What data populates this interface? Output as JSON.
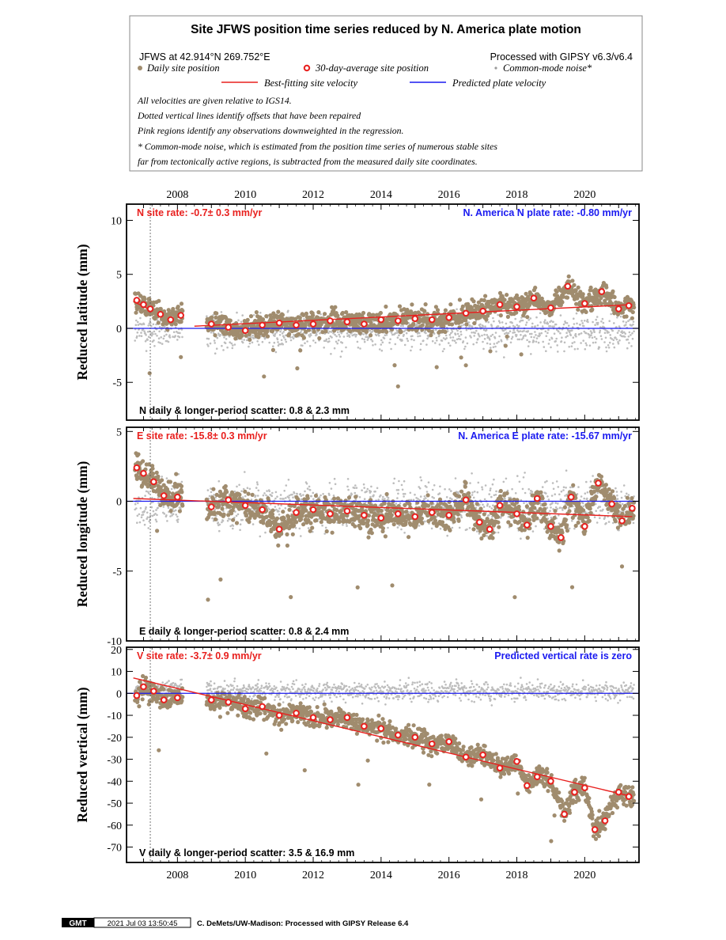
{
  "legend": {
    "title": "Site JFWS position time series reduced by N. America plate motion",
    "site_info": "JFWS at 42.914°N 269.752°E",
    "processed": "Processed with GIPSY v6.3/v6.4",
    "daily_label": "Daily site position",
    "avg_label": "30-day-average site position",
    "cm_label": "Common-mode noise*",
    "fit_label": "Best-fitting site velocity",
    "plate_label": "Predicted plate velocity",
    "note1": "All velocities are given relative to IGS14.",
    "note2": "Dotted vertical lines identify offsets that have been repaired",
    "note3": "Pink regions identify any observations downweighted in the regression.",
    "note4": "* Common-mode noise, which is estimated from the position time series of numerous stable sites",
    "note5": "far from tectonically active regions, is subtracted from the measured daily site coordinates."
  },
  "footer": {
    "logo": "GMT",
    "timestamp": "2021 Jul 03 13:50:45",
    "credit": "C. DeMets/UW-Madison: Processed with GIPSY Release 6.4"
  },
  "colors": {
    "daily": "#a08c6e",
    "common_mode": "#bdbdbd",
    "average_fill": "#ffffff",
    "average_edge": "#e8201e",
    "fit": "#e8201e",
    "plate": "#1a1af0",
    "site_text": "#e8201e",
    "plate_text": "#1a1af0"
  },
  "chart_data": [
    {
      "type": "scatter",
      "panel": "north",
      "ylabel": "Reduced latitude (mm)",
      "xlim": [
        2006.5,
        2021.6
      ],
      "ylim": [
        -8.5,
        11.5
      ],
      "x_ticks": [
        2008,
        2010,
        2012,
        2014,
        2016,
        2018,
        2020
      ],
      "y_ticks": [
        10,
        5,
        0,
        -5
      ],
      "offset_lines": [
        2007.2
      ],
      "site_rate": "N site rate:  -0.7± 0.3 mm/yr",
      "plate_rate": "N. America N plate rate: -0.80 mm/yr",
      "scatter": "N daily & longer-period scatter:   0.8 &   2.3 mm",
      "fit": {
        "x": [
          2008.5,
          2021.4
        ],
        "y": [
          0.2,
          2.2
        ],
        "early_x": [
          2006.7,
          2007.2
        ],
        "early_y": [
          2.5,
          1.7
        ]
      },
      "plate_line": {
        "y": 0
      },
      "averages": [
        {
          "x": 2006.8,
          "y": 2.6
        },
        {
          "x": 2007.0,
          "y": 2.2
        },
        {
          "x": 2007.2,
          "y": 1.8
        },
        {
          "x": 2007.5,
          "y": 1.3
        },
        {
          "x": 2007.8,
          "y": 0.8
        },
        {
          "x": 2008.1,
          "y": 1.2
        },
        {
          "x": 2009.0,
          "y": 0.4
        },
        {
          "x": 2009.5,
          "y": 0.1
        },
        {
          "x": 2010.0,
          "y": -0.2
        },
        {
          "x": 2010.5,
          "y": 0.3
        },
        {
          "x": 2011.0,
          "y": 0.5
        },
        {
          "x": 2011.5,
          "y": 0.3
        },
        {
          "x": 2012.0,
          "y": 0.4
        },
        {
          "x": 2012.5,
          "y": 0.7
        },
        {
          "x": 2013.0,
          "y": 0.6
        },
        {
          "x": 2013.5,
          "y": 0.4
        },
        {
          "x": 2014.0,
          "y": 0.8
        },
        {
          "x": 2014.5,
          "y": 0.7
        },
        {
          "x": 2015.0,
          "y": 0.9
        },
        {
          "x": 2015.5,
          "y": 0.8
        },
        {
          "x": 2016.0,
          "y": 1.0
        },
        {
          "x": 2016.5,
          "y": 1.4
        },
        {
          "x": 2017.0,
          "y": 1.6
        },
        {
          "x": 2017.5,
          "y": 2.2
        },
        {
          "x": 2018.0,
          "y": 2.0
        },
        {
          "x": 2018.5,
          "y": 2.8
        },
        {
          "x": 2019.0,
          "y": 1.9
        },
        {
          "x": 2019.5,
          "y": 3.9
        },
        {
          "x": 2020.0,
          "y": 2.3
        },
        {
          "x": 2020.5,
          "y": 3.4
        },
        {
          "x": 2021.0,
          "y": 1.8
        },
        {
          "x": 2021.3,
          "y": 2.1
        }
      ]
    },
    {
      "type": "scatter",
      "panel": "east",
      "ylabel": "Reduced longitude (mm)",
      "xlim": [
        2006.5,
        2021.6
      ],
      "ylim": [
        -10,
        5.3
      ],
      "x_ticks": [
        2008,
        2010,
        2012,
        2014,
        2016,
        2018,
        2020
      ],
      "y_ticks": [
        5,
        0,
        -5,
        -10
      ],
      "offset_lines": [
        2007.2
      ],
      "site_rate": "E site rate:  -15.8± 0.3 mm/yr",
      "plate_rate": "N. America E plate rate: -15.67 mm/yr",
      "scatter": "E daily & longer-period scatter:   0.8 &   2.4 mm",
      "fit": {
        "x": [
          2006.7,
          2021.4
        ],
        "y": [
          0.2,
          -1.1
        ]
      },
      "plate_line": {
        "y": 0
      },
      "averages": [
        {
          "x": 2006.8,
          "y": 2.4
        },
        {
          "x": 2007.0,
          "y": 2.0
        },
        {
          "x": 2007.3,
          "y": 1.4
        },
        {
          "x": 2007.6,
          "y": 0.4
        },
        {
          "x": 2008.0,
          "y": 0.3
        },
        {
          "x": 2009.0,
          "y": -0.4
        },
        {
          "x": 2009.5,
          "y": 0.1
        },
        {
          "x": 2010.0,
          "y": -0.3
        },
        {
          "x": 2010.5,
          "y": -0.6
        },
        {
          "x": 2011.0,
          "y": -2.0
        },
        {
          "x": 2011.5,
          "y": -0.8
        },
        {
          "x": 2012.0,
          "y": -0.6
        },
        {
          "x": 2012.5,
          "y": -0.9
        },
        {
          "x": 2013.0,
          "y": -0.7
        },
        {
          "x": 2013.5,
          "y": -1.0
        },
        {
          "x": 2014.0,
          "y": -1.2
        },
        {
          "x": 2014.5,
          "y": -0.9
        },
        {
          "x": 2015.0,
          "y": -1.1
        },
        {
          "x": 2015.5,
          "y": -0.8
        },
        {
          "x": 2016.0,
          "y": -1.0
        },
        {
          "x": 2016.5,
          "y": 0.1
        },
        {
          "x": 2016.9,
          "y": -1.5
        },
        {
          "x": 2017.2,
          "y": -2.0
        },
        {
          "x": 2017.5,
          "y": -0.3
        },
        {
          "x": 2018.0,
          "y": -0.9
        },
        {
          "x": 2018.3,
          "y": -1.7
        },
        {
          "x": 2018.6,
          "y": 0.2
        },
        {
          "x": 2019.0,
          "y": -1.8
        },
        {
          "x": 2019.3,
          "y": -2.6
        },
        {
          "x": 2019.6,
          "y": 0.3
        },
        {
          "x": 2020.0,
          "y": -1.8
        },
        {
          "x": 2020.4,
          "y": 1.3
        },
        {
          "x": 2020.8,
          "y": -0.2
        },
        {
          "x": 2021.1,
          "y": -1.4
        },
        {
          "x": 2021.4,
          "y": -0.5
        }
      ]
    },
    {
      "type": "scatter",
      "panel": "vertical",
      "ylabel": "Reduced vertical (mm)",
      "xlim": [
        2006.5,
        2021.6
      ],
      "ylim": [
        -77,
        21
      ],
      "x_ticks": [
        2008,
        2010,
        2012,
        2014,
        2016,
        2018,
        2020
      ],
      "y_ticks": [
        20,
        10,
        0,
        -10,
        -20,
        -30,
        -40,
        -50,
        -60,
        -70
      ],
      "offset_lines": [
        2007.2
      ],
      "site_rate": "V site rate:  -3.7± 0.9 mm/yr",
      "plate_rate": "Predicted vertical rate is zero",
      "scatter": "V daily & longer-period scatter:   3.5 &  16.9 mm",
      "fit": {
        "x": [
          2006.7,
          2021.4
        ],
        "y": [
          7,
          -47
        ]
      },
      "plate_line": {
        "y": 0
      },
      "averages": [
        {
          "x": 2006.8,
          "y": -1
        },
        {
          "x": 2007.0,
          "y": 3
        },
        {
          "x": 2007.3,
          "y": 1
        },
        {
          "x": 2007.6,
          "y": -3
        },
        {
          "x": 2008.0,
          "y": -2
        },
        {
          "x": 2009.0,
          "y": -3
        },
        {
          "x": 2009.5,
          "y": -4
        },
        {
          "x": 2010.0,
          "y": -7
        },
        {
          "x": 2010.5,
          "y": -6
        },
        {
          "x": 2011.0,
          "y": -10
        },
        {
          "x": 2011.5,
          "y": -9
        },
        {
          "x": 2012.0,
          "y": -11
        },
        {
          "x": 2012.5,
          "y": -12
        },
        {
          "x": 2013.0,
          "y": -11
        },
        {
          "x": 2013.5,
          "y": -15
        },
        {
          "x": 2014.0,
          "y": -16
        },
        {
          "x": 2014.5,
          "y": -19
        },
        {
          "x": 2015.0,
          "y": -20
        },
        {
          "x": 2015.5,
          "y": -23
        },
        {
          "x": 2016.0,
          "y": -22
        },
        {
          "x": 2016.5,
          "y": -29
        },
        {
          "x": 2017.0,
          "y": -28
        },
        {
          "x": 2017.5,
          "y": -34
        },
        {
          "x": 2018.0,
          "y": -31
        },
        {
          "x": 2018.3,
          "y": -42
        },
        {
          "x": 2018.6,
          "y": -38
        },
        {
          "x": 2019.0,
          "y": -40
        },
        {
          "x": 2019.4,
          "y": -55
        },
        {
          "x": 2019.7,
          "y": -45
        },
        {
          "x": 2020.0,
          "y": -43
        },
        {
          "x": 2020.3,
          "y": -62
        },
        {
          "x": 2020.6,
          "y": -58
        },
        {
          "x": 2021.0,
          "y": -45
        },
        {
          "x": 2021.3,
          "y": -47
        }
      ]
    }
  ]
}
